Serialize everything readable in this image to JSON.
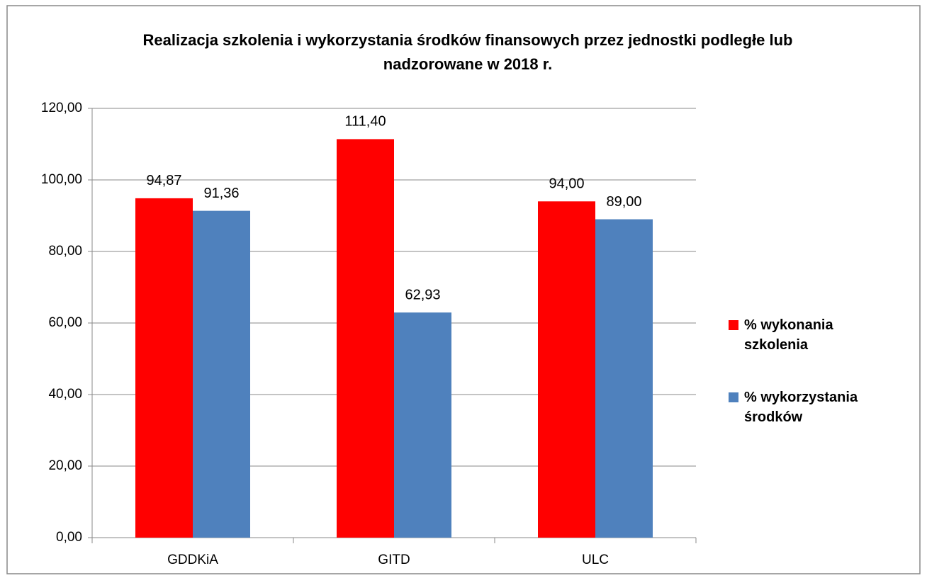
{
  "chart_data": {
    "type": "bar",
    "title": "Realizacja szkolenia i wykorzystania środków finansowych przez jednostki podległe lub nadzorowane w 2018 r.",
    "categories": [
      "GDDKiA",
      "GITD",
      "ULC"
    ],
    "series": [
      {
        "name": "% wykonania szkolenia",
        "color": "#ff0000",
        "values": [
          94.87,
          111.4,
          94.0
        ],
        "value_labels": [
          "94,87",
          "111,40",
          "94,00"
        ]
      },
      {
        "name": "% wykorzystania środków",
        "color": "#4f81bd",
        "values": [
          91.36,
          62.93,
          89.0
        ],
        "value_labels": [
          "91,36",
          "62,93",
          "89,00"
        ]
      }
    ],
    "ylim": [
      0,
      120
    ],
    "yticks": [
      {
        "value": 0,
        "label": "0,00"
      },
      {
        "value": 20,
        "label": "20,00"
      },
      {
        "value": 40,
        "label": "40,00"
      },
      {
        "value": 60,
        "label": "60,00"
      },
      {
        "value": 80,
        "label": "80,00"
      },
      {
        "value": 100,
        "label": "100,00"
      },
      {
        "value": 120,
        "label": "120,00"
      }
    ],
    "grid": true,
    "legend": "right"
  }
}
